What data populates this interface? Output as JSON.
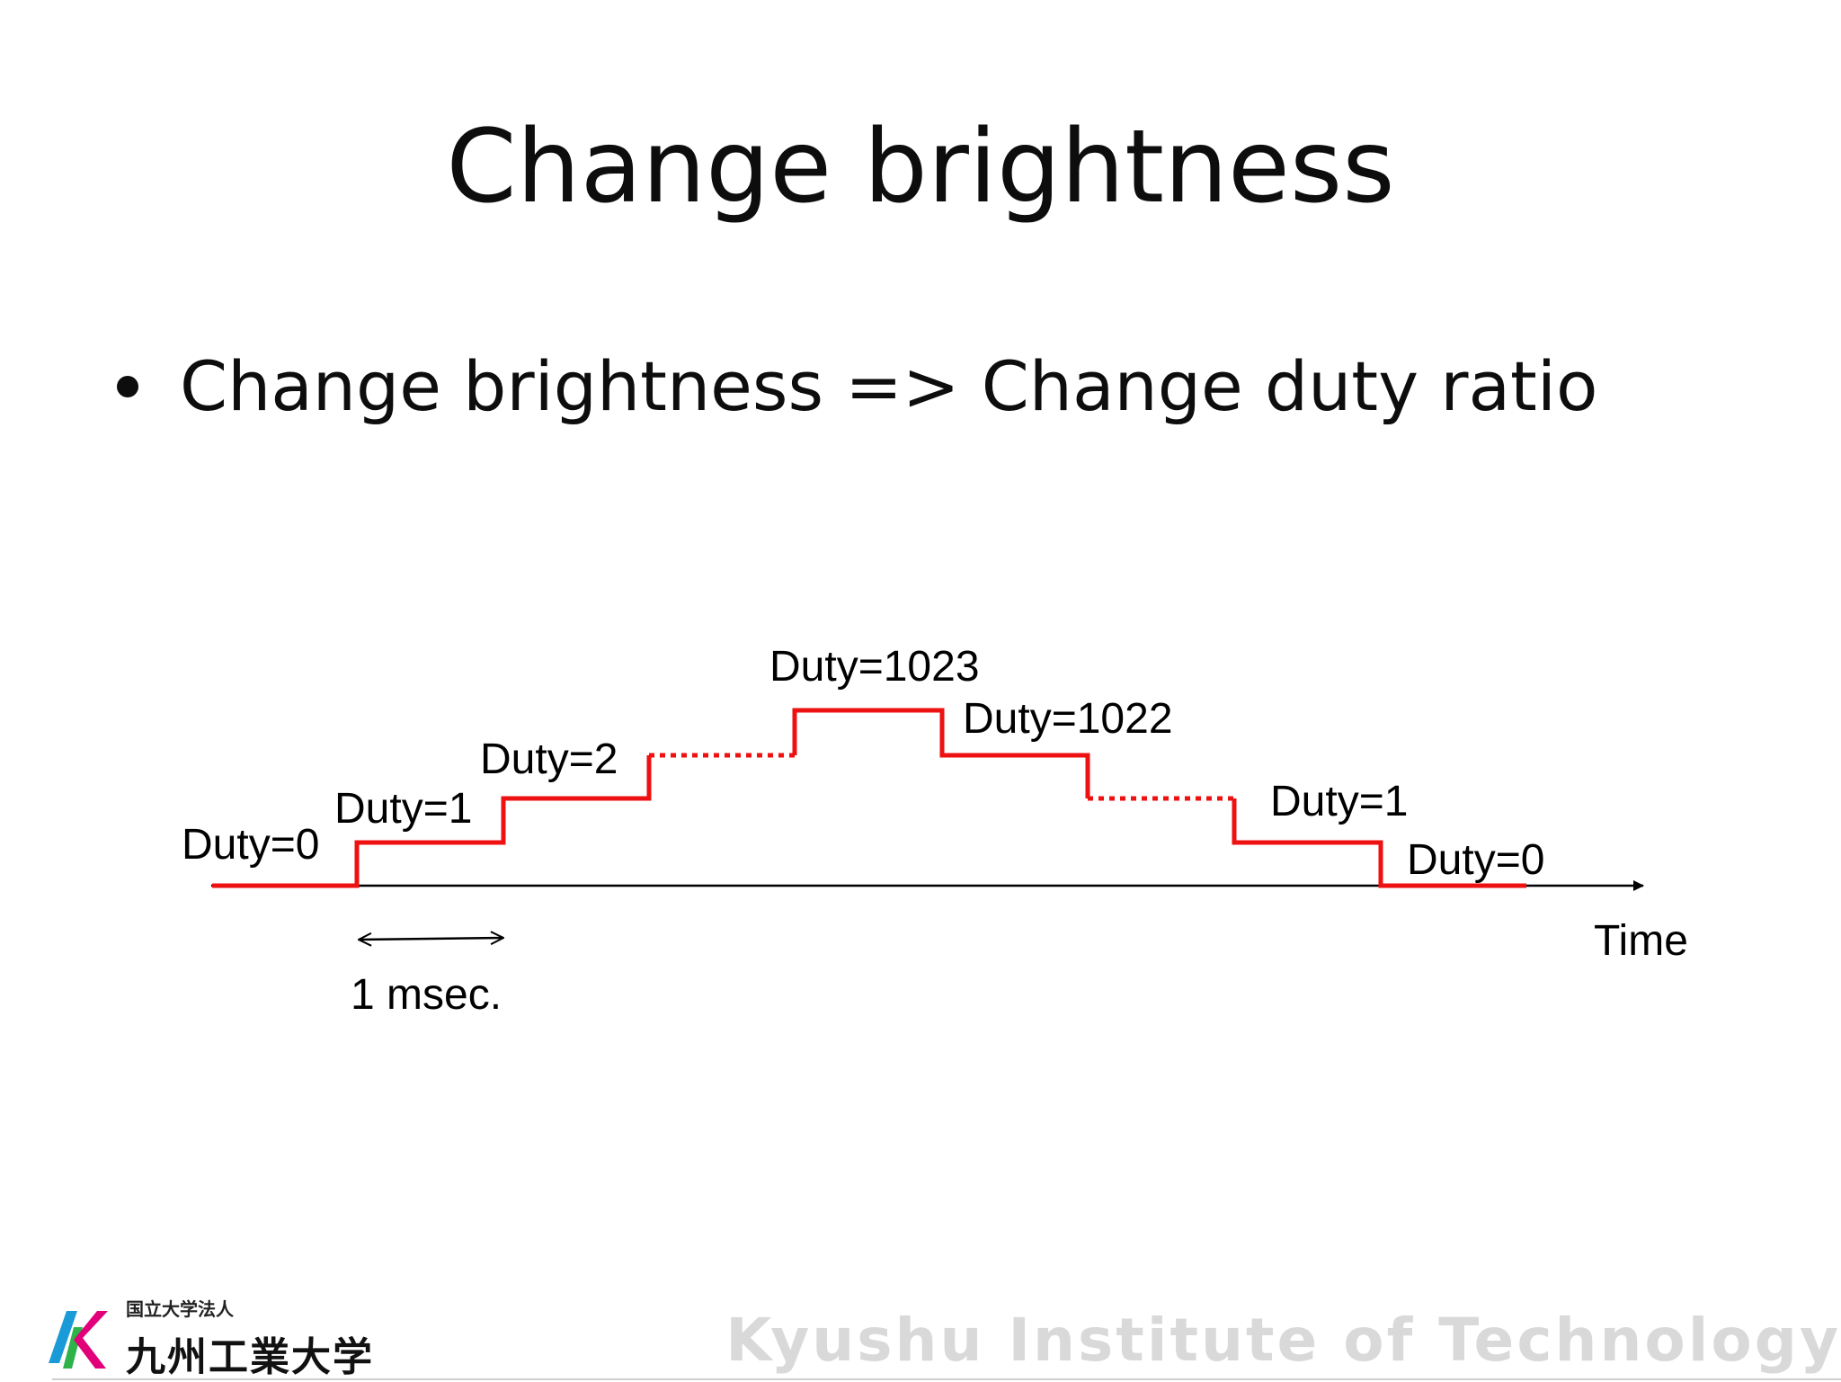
{
  "slide": {
    "title": "Change brightness",
    "bullet": "Change brightness => Change duty ratio"
  },
  "diagram": {
    "colors": {
      "signal": "#ee1111",
      "axis": "#000000",
      "text": "#000000"
    },
    "steps": [
      {
        "label": "Duty=0"
      },
      {
        "label": "Duty=1"
      },
      {
        "label": "Duty=2"
      },
      {
        "label": "Duty=1023"
      },
      {
        "label": "Duty=1022"
      },
      {
        "label": "Duty=1"
      },
      {
        "label": "Duty=0"
      }
    ],
    "time_label": "Time",
    "period_label": "1 msec."
  },
  "footer": {
    "logo_small": "国立大学法人",
    "logo_big": "九州工業大学",
    "institute": "Kyushu Institute of Technology",
    "logo_colors": [
      "#1a9ad6",
      "#2db34a",
      "#e2007a"
    ]
  }
}
